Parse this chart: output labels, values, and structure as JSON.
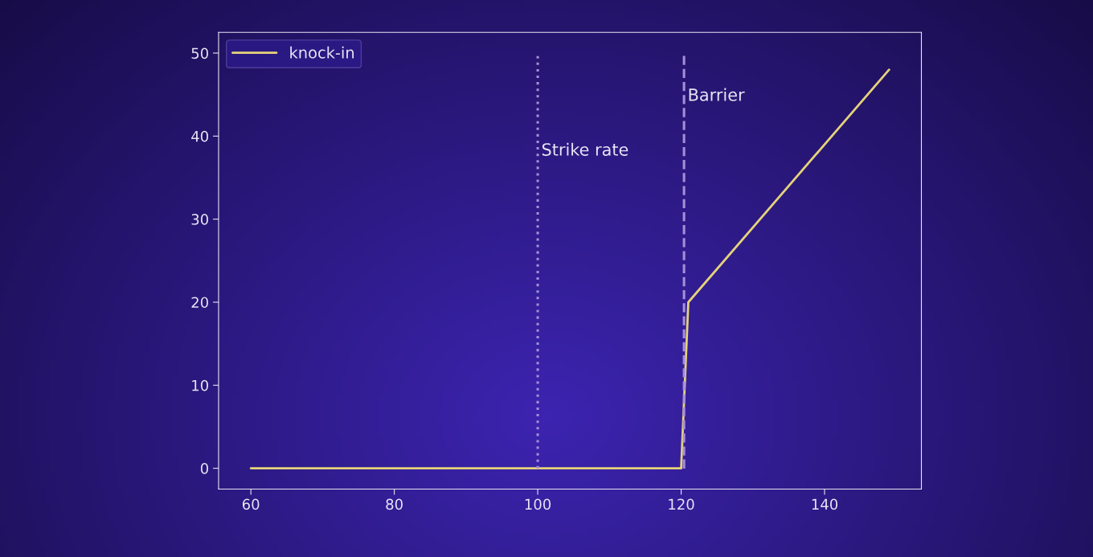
{
  "chart_data": {
    "type": "line",
    "series": [
      {
        "name": "knock-in",
        "color": "#e6d27a",
        "x": [
          60,
          120,
          121,
          149
        ],
        "values": [
          0,
          0,
          20,
          48
        ]
      }
    ],
    "xlim": [
      55.5,
      153.5
    ],
    "ylim": [
      -2.5,
      52.5
    ],
    "xticks": [
      60,
      80,
      100,
      120,
      140
    ],
    "yticks": [
      0,
      10,
      20,
      30,
      40,
      50
    ],
    "ref_lines": [
      {
        "axis": "x",
        "value": 100,
        "label": "Strike rate",
        "color": "#a68fd8",
        "line_style": "dotted"
      },
      {
        "axis": "x",
        "value": 120.4,
        "label": "Barrier",
        "color": "#a68fd8",
        "line_style": "dashed"
      }
    ],
    "legend": "top left",
    "grid": false
  }
}
